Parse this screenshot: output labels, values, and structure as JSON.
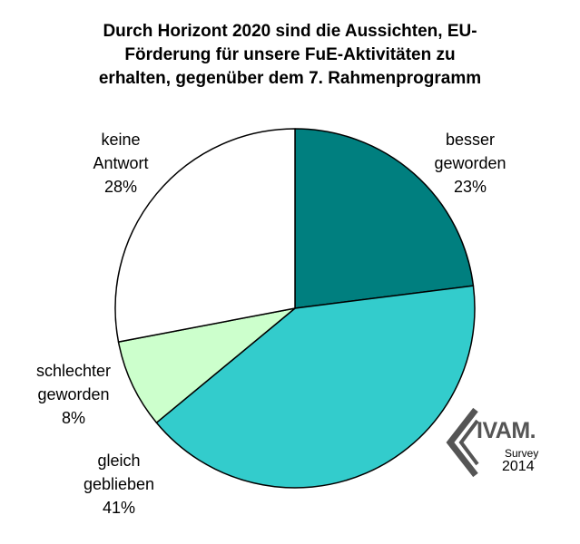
{
  "chart_data": {
    "type": "pie",
    "title_lines": [
      "Durch Horizont 2020 sind die Aussichten, EU-",
      "Förderung für unsere FuE-Aktivitäten zu",
      "erhalten, gegenüber dem 7. Rahmenprogramm"
    ],
    "slices": [
      {
        "label_lines": [
          "besser",
          "geworden"
        ],
        "percent_label": "23%",
        "value": 23,
        "color": "#007f7f"
      },
      {
        "label_lines": [
          "gleich",
          "geblieben"
        ],
        "percent_label": "41%",
        "value": 41,
        "color": "#33cccc"
      },
      {
        "label_lines": [
          "schlechter",
          "geworden"
        ],
        "percent_label": "8%",
        "value": 8,
        "color": "#ccffcc"
      },
      {
        "label_lines": [
          "keine",
          "Antwort"
        ],
        "percent_label": "28%",
        "value": 28,
        "color": "#ffffff"
      }
    ]
  },
  "logo": {
    "text": "IVAM.",
    "survey": "Survey",
    "year": "2014",
    "color": "#555555"
  }
}
